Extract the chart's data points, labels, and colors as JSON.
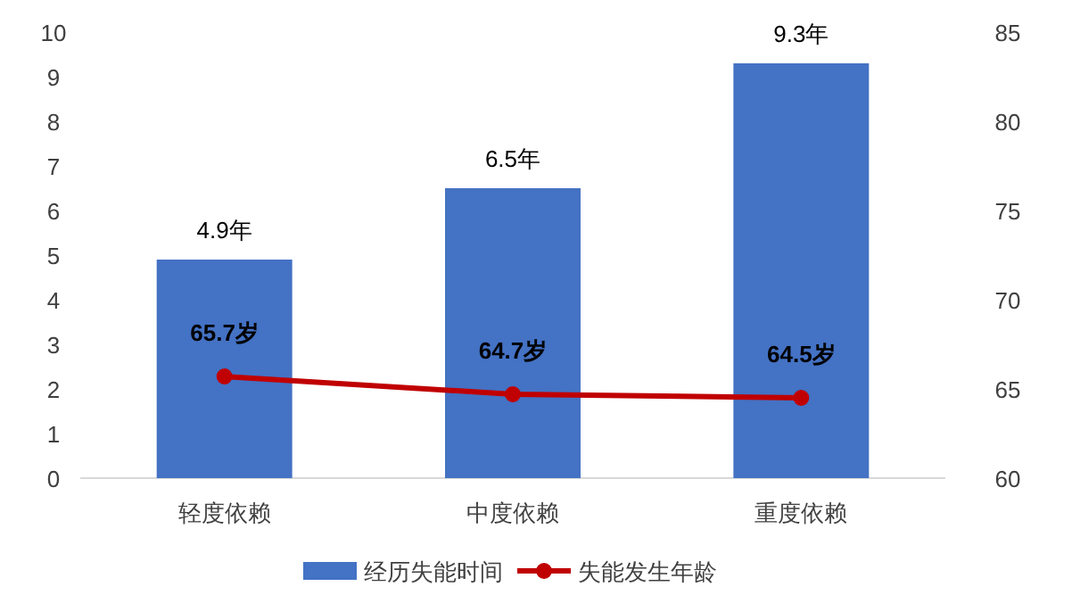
{
  "chart_data": {
    "type": "bar",
    "categories": [
      "轻度依赖",
      "中度依赖",
      "重度依赖"
    ],
    "series": [
      {
        "name": "经历失能时间",
        "color": "#4472c4",
        "values": [
          4.9,
          6.5,
          9.3
        ],
        "value_labels": [
          "4.9年",
          "6.5年",
          "9.3年"
        ]
      },
      {
        "name": "失能发生年龄",
        "type": "line",
        "axis": "y2",
        "color": "#c00000",
        "marker": "circle",
        "values": [
          65.7,
          64.7,
          64.5
        ],
        "value_labels": [
          "65.7岁",
          "64.7岁",
          "64.5岁"
        ]
      }
    ],
    "ylim": [
      0,
      10
    ],
    "yticks": [
      0,
      1,
      2,
      3,
      4,
      5,
      6,
      7,
      8,
      9,
      10
    ],
    "y2lim": [
      60,
      85
    ],
    "y2ticks": [
      60,
      65,
      70,
      75,
      80,
      85
    ],
    "legend": "bottom",
    "grid": false
  }
}
